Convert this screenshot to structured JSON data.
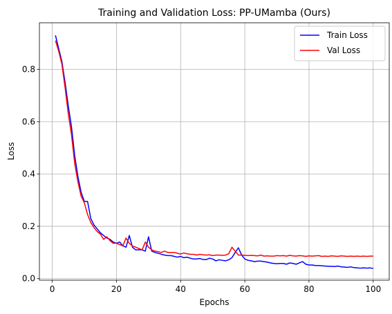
{
  "chart_data": {
    "type": "line",
    "title": "Training and Validation Loss: PP-UMamba (Ours)",
    "xlabel": "Epochs",
    "ylabel": "Loss",
    "xlim": [
      -4,
      105
    ],
    "ylim": [
      -0.006,
      0.978
    ],
    "xticks": [
      0,
      20,
      40,
      60,
      80,
      100
    ],
    "yticks": [
      0.0,
      0.2,
      0.4,
      0.6,
      0.8
    ],
    "xtick_labels": [
      "0",
      "20",
      "40",
      "60",
      "80",
      "100"
    ],
    "ytick_labels": [
      "0.0",
      "0.2",
      "0.4",
      "0.6",
      "0.8"
    ],
    "grid": true,
    "legend_position": "top-right",
    "series": [
      {
        "name": "Train Loss",
        "color": "#0000ff",
        "x": [
          1,
          2,
          3,
          4,
          5,
          6,
          7,
          8,
          9,
          10,
          11,
          12,
          13,
          14,
          15,
          16,
          17,
          18,
          19,
          20,
          21,
          22,
          23,
          24,
          25,
          26,
          27,
          28,
          29,
          30,
          31,
          32,
          33,
          34,
          35,
          36,
          37,
          38,
          39,
          40,
          41,
          42,
          43,
          44,
          45,
          46,
          47,
          48,
          49,
          50,
          51,
          52,
          53,
          54,
          55,
          56,
          57,
          58,
          59,
          60,
          61,
          62,
          63,
          64,
          65,
          66,
          67,
          68,
          69,
          70,
          71,
          72,
          73,
          74,
          75,
          76,
          77,
          78,
          79,
          80,
          81,
          82,
          83,
          84,
          85,
          86,
          87,
          88,
          89,
          90,
          91,
          92,
          93,
          94,
          95,
          96,
          97,
          98,
          99,
          100
        ],
        "y": [
          0.93,
          0.88,
          0.83,
          0.75,
          0.66,
          0.58,
          0.47,
          0.39,
          0.33,
          0.295,
          0.295,
          0.23,
          0.205,
          0.19,
          0.175,
          0.165,
          0.155,
          0.15,
          0.14,
          0.135,
          0.14,
          0.125,
          0.12,
          0.165,
          0.12,
          0.11,
          0.11,
          0.11,
          0.105,
          0.16,
          0.105,
          0.1,
          0.097,
          0.093,
          0.09,
          0.088,
          0.088,
          0.085,
          0.082,
          0.085,
          0.08,
          0.082,
          0.078,
          0.075,
          0.075,
          0.077,
          0.073,
          0.073,
          0.078,
          0.075,
          0.068,
          0.072,
          0.07,
          0.068,
          0.072,
          0.08,
          0.1,
          0.118,
          0.09,
          0.075,
          0.07,
          0.068,
          0.065,
          0.067,
          0.067,
          0.065,
          0.063,
          0.06,
          0.058,
          0.057,
          0.058,
          0.058,
          0.055,
          0.06,
          0.058,
          0.055,
          0.06,
          0.065,
          0.055,
          0.052,
          0.052,
          0.05,
          0.05,
          0.049,
          0.048,
          0.047,
          0.047,
          0.046,
          0.048,
          0.045,
          0.044,
          0.043,
          0.045,
          0.042,
          0.041,
          0.04,
          0.041,
          0.04,
          0.041,
          0.039
        ]
      },
      {
        "name": "Val Loss",
        "color": "#ff0000",
        "x": [
          1,
          2,
          3,
          4,
          5,
          6,
          7,
          8,
          9,
          10,
          11,
          12,
          13,
          14,
          15,
          16,
          17,
          18,
          19,
          20,
          21,
          22,
          23,
          24,
          25,
          26,
          27,
          28,
          29,
          30,
          31,
          32,
          33,
          34,
          35,
          36,
          37,
          38,
          39,
          40,
          41,
          42,
          43,
          44,
          45,
          46,
          47,
          48,
          49,
          50,
          51,
          52,
          53,
          54,
          55,
          56,
          57,
          58,
          59,
          60,
          61,
          62,
          63,
          64,
          65,
          66,
          67,
          68,
          69,
          70,
          71,
          72,
          73,
          74,
          75,
          76,
          77,
          78,
          79,
          80,
          81,
          82,
          83,
          84,
          85,
          86,
          87,
          88,
          89,
          90,
          91,
          92,
          93,
          94,
          95,
          96,
          97,
          98,
          99,
          100
        ],
        "y": [
          0.91,
          0.87,
          0.82,
          0.73,
          0.63,
          0.55,
          0.44,
          0.37,
          0.315,
          0.29,
          0.245,
          0.215,
          0.195,
          0.18,
          0.17,
          0.15,
          0.16,
          0.145,
          0.135,
          0.135,
          0.13,
          0.125,
          0.155,
          0.135,
          0.125,
          0.12,
          0.115,
          0.11,
          0.14,
          0.12,
          0.11,
          0.105,
          0.103,
          0.1,
          0.105,
          0.1,
          0.1,
          0.1,
          0.097,
          0.094,
          0.098,
          0.095,
          0.093,
          0.093,
          0.09,
          0.093,
          0.091,
          0.09,
          0.091,
          0.088,
          0.09,
          0.09,
          0.089,
          0.09,
          0.095,
          0.12,
          0.105,
          0.09,
          0.09,
          0.089,
          0.088,
          0.089,
          0.088,
          0.087,
          0.09,
          0.086,
          0.087,
          0.086,
          0.086,
          0.088,
          0.087,
          0.088,
          0.086,
          0.089,
          0.087,
          0.086,
          0.088,
          0.087,
          0.085,
          0.087,
          0.086,
          0.087,
          0.088,
          0.085,
          0.086,
          0.085,
          0.087,
          0.086,
          0.085,
          0.087,
          0.086,
          0.085,
          0.086,
          0.085,
          0.086,
          0.085,
          0.086,
          0.085,
          0.086,
          0.086
        ]
      }
    ]
  }
}
